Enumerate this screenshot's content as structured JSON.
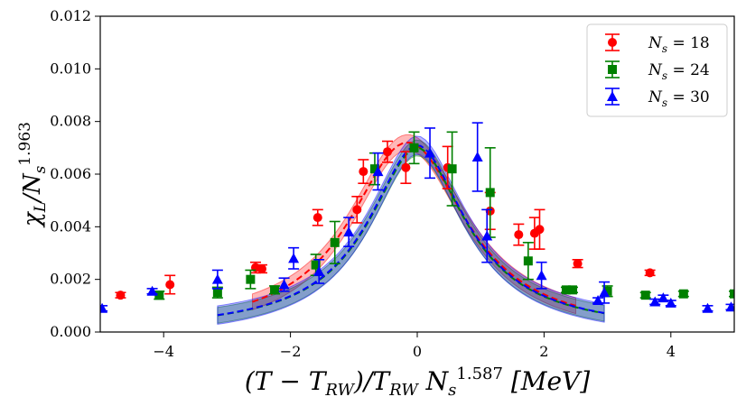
{
  "chart_data": {
    "type": "scatter",
    "title": "",
    "xlabel": "(T − T_RW)/T_RW N_s^1.587 [MeV]",
    "xlabel_parts": {
      "main": "(T − T",
      "sub1": "RW",
      "mid": ")/T",
      "sub2": "RW",
      "gap": " N",
      "sub3": "s",
      "sup3": "1.587",
      "unit": " [MeV]"
    },
    "ylabel": "χ_L/N_s^1.963",
    "ylabel_parts": {
      "main": "χ",
      "sub1": "L",
      "mid": "/N",
      "sub2": "s",
      "sup2": "1.963"
    },
    "xlim": [
      -5,
      5
    ],
    "ylim": [
      0,
      0.012
    ],
    "x_ticks": [
      -4,
      -2,
      0,
      2,
      4
    ],
    "x_tick_labels": [
      "−4",
      "−2",
      "0",
      "2",
      "4"
    ],
    "y_ticks": [
      0.0,
      0.002,
      0.004,
      0.006,
      0.008,
      0.01,
      0.012
    ],
    "y_tick_labels": [
      "0.000",
      "0.002",
      "0.004",
      "0.006",
      "0.008",
      "0.010",
      "0.012"
    ],
    "grid": false,
    "legend_position": "top-right",
    "series": [
      {
        "name": "N_s = 18",
        "legend_parts": {
          "main": "N",
          "sub": "s",
          "rest": " = 18"
        },
        "color": "#ff0000",
        "marker": "circle",
        "points": [
          {
            "x": -4.68,
            "y": 0.0014,
            "err": 0.0001
          },
          {
            "x": -3.9,
            "y": 0.0018,
            "err": 0.00035
          },
          {
            "x": -2.55,
            "y": 0.00245,
            "err": 0.0002
          },
          {
            "x": -2.45,
            "y": 0.0024,
            "err": 0.00015
          },
          {
            "x": -1.57,
            "y": 0.00435,
            "err": 0.0003
          },
          {
            "x": -0.95,
            "y": 0.00465,
            "err": 0.0005
          },
          {
            "x": -0.85,
            "y": 0.0061,
            "err": 0.00045
          },
          {
            "x": -0.47,
            "y": 0.00685,
            "err": 0.0004
          },
          {
            "x": -0.18,
            "y": 0.00625,
            "err": 0.0006
          },
          {
            "x": 0.48,
            "y": 0.00625,
            "err": 0.0008
          },
          {
            "x": 1.15,
            "y": 0.0046,
            "err": 0.0007
          },
          {
            "x": 1.6,
            "y": 0.0037,
            "err": 0.0004
          },
          {
            "x": 1.85,
            "y": 0.00375,
            "err": 0.0006
          },
          {
            "x": 1.93,
            "y": 0.0039,
            "err": 0.00075
          },
          {
            "x": 2.53,
            "y": 0.0026,
            "err": 0.00015
          },
          {
            "x": 3.67,
            "y": 0.00225,
            "err": 0.0001
          }
        ],
        "fit": {
          "x_range": [
            -2.6,
            2.5
          ],
          "band": 0.0003
        }
      },
      {
        "name": "N_s = 24",
        "legend_parts": {
          "main": "N",
          "sub": "s",
          "rest": " = 24"
        },
        "color": "#008000",
        "marker": "square",
        "points": [
          {
            "x": -4.07,
            "y": 0.0014,
            "err": 0.00015
          },
          {
            "x": -3.15,
            "y": 0.0015,
            "err": 0.0002
          },
          {
            "x": -2.63,
            "y": 0.002,
            "err": 0.00035
          },
          {
            "x": -2.25,
            "y": 0.0016,
            "err": 0.00015
          },
          {
            "x": -1.6,
            "y": 0.00255,
            "err": 0.0004
          },
          {
            "x": -1.3,
            "y": 0.0034,
            "err": 0.0008
          },
          {
            "x": -0.67,
            "y": 0.0062,
            "err": 0.0006
          },
          {
            "x": -0.05,
            "y": 0.007,
            "err": 0.0006
          },
          {
            "x": 0.55,
            "y": 0.0062,
            "err": 0.0014
          },
          {
            "x": 1.15,
            "y": 0.0053,
            "err": 0.0017
          },
          {
            "x": 1.75,
            "y": 0.0027,
            "err": 0.0007
          },
          {
            "x": 2.35,
            "y": 0.0016,
            "err": 0.0001
          },
          {
            "x": 2.45,
            "y": 0.0016,
            "err": 0.0001
          },
          {
            "x": 3.0,
            "y": 0.00155,
            "err": 0.0002
          },
          {
            "x": 3.6,
            "y": 0.0014,
            "err": 0.0001
          },
          {
            "x": 4.2,
            "y": 0.00145,
            "err": 0.0001
          },
          {
            "x": 5.0,
            "y": 0.00145,
            "err": 0.0001
          }
        ],
        "fit": {
          "x_range": [
            -3.15,
            2.95
          ],
          "band": 0.0003
        }
      },
      {
        "name": "N_s = 30",
        "legend_parts": {
          "main": "N",
          "sub": "s",
          "rest": " = 30"
        },
        "color": "#0000ff",
        "marker": "triangle",
        "points": [
          {
            "x": -4.97,
            "y": 0.0009,
            "err": 0.0001
          },
          {
            "x": -4.18,
            "y": 0.00155,
            "err": 0.0001
          },
          {
            "x": -3.15,
            "y": 0.002,
            "err": 0.00035
          },
          {
            "x": -2.1,
            "y": 0.0018,
            "err": 0.00025
          },
          {
            "x": -1.95,
            "y": 0.0028,
            "err": 0.0004
          },
          {
            "x": -1.55,
            "y": 0.0023,
            "err": 0.00045
          },
          {
            "x": -1.08,
            "y": 0.0038,
            "err": 0.00055
          },
          {
            "x": -0.62,
            "y": 0.0061,
            "err": 0.0007
          },
          {
            "x": 0.2,
            "y": 0.0068,
            "err": 0.00095
          },
          {
            "x": 0.95,
            "y": 0.00665,
            "err": 0.0013
          },
          {
            "x": 1.1,
            "y": 0.00365,
            "err": 0.001
          },
          {
            "x": 1.96,
            "y": 0.00215,
            "err": 0.0005
          },
          {
            "x": 2.85,
            "y": 0.0012,
            "err": 0.0001
          },
          {
            "x": 2.95,
            "y": 0.0015,
            "err": 0.0004
          },
          {
            "x": 3.75,
            "y": 0.00115,
            "err": 0.0001
          },
          {
            "x": 3.88,
            "y": 0.0013,
            "err": 0.0001
          },
          {
            "x": 4.0,
            "y": 0.0011,
            "err": 0.0001
          },
          {
            "x": 4.58,
            "y": 0.0009,
            "err": 0.0001
          },
          {
            "x": 4.95,
            "y": 0.00095,
            "err": 0.0001
          }
        ],
        "fit": {
          "x_range": [
            -3.15,
            2.95
          ],
          "band": 0.00035
        }
      }
    ]
  }
}
